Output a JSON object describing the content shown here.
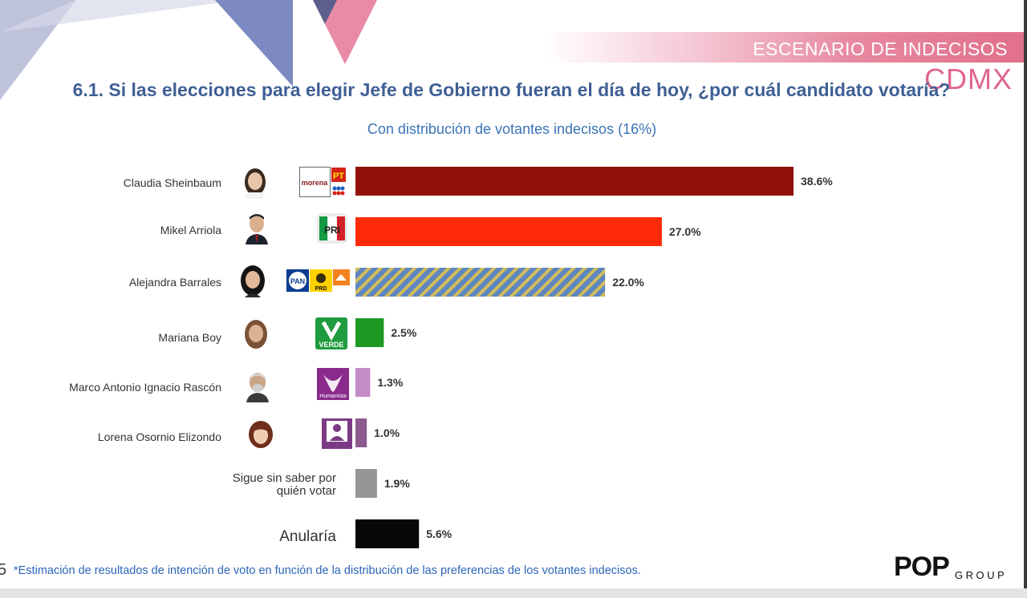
{
  "header": {
    "banner": "ESCENARIO DE INDECISOS",
    "region": "CDMX",
    "title": "6.1. Si las elecciones para elegir Jefe de Gobierno fueran el día de hoy, ¿por cuál candidato votaría?",
    "subtitle": "Con distribución de votantes indecisos (16%)"
  },
  "chart_data": {
    "type": "bar",
    "orientation": "horizontal",
    "title": "6.1. Si las elecciones para elegir Jefe de Gobierno fueran el día de hoy, ¿por cuál candidato votaría?",
    "subtitle": "Con distribución de votantes indecisos (16%)",
    "categories": [
      "Claudia Sheinbaum",
      "Mikel Arriola",
      "Alejandra Barrales",
      "Mariana Boy",
      "Marco Antonio Ignacio Rascón",
      "Lorena Osornio Elizondo",
      "Sigue sin saber por quién votar",
      "Anularía"
    ],
    "values": [
      38.6,
      27.0,
      22.0,
      2.5,
      1.3,
      1.0,
      1.9,
      5.6
    ],
    "labels": [
      "38.6%",
      "27.0%",
      "22.0%",
      "2.5%",
      "1.3%",
      "1.0%",
      "1.9%",
      "5.6%"
    ],
    "colors": [
      "#931108",
      "#ff2a0a",
      "striped-blue-yellow",
      "#1e9a24",
      "#c48cc8",
      "#8b5a8e",
      "#969696",
      "#080808"
    ],
    "xlim": [
      0,
      40
    ],
    "grid": false,
    "legend": "none"
  },
  "candidates": {
    "c0": "Claudia Sheinbaum",
    "c1": "Mikel Arriola",
    "c2": "Alejandra Barrales",
    "c3": "Mariana Boy",
    "c4": "Marco Antonio Ignacio Rascón",
    "c5": "Lorena Osornio Elizondo",
    "c6_line1": "Sigue sin saber por",
    "c6_line2": "quién votar",
    "c7": "Anularía"
  },
  "party_logos": {
    "morena": "morena",
    "pt": "PT",
    "pri": "PRI",
    "pan": "PAN",
    "prd": "PRD",
    "verde": "VERDE",
    "humanista": "Humanista"
  },
  "footer": {
    "page": "5",
    "note": "*Estimación de resultados de intención de voto en función de la distribución de las preferencias de los votantes indecisos.",
    "brand": "POP",
    "brand_sub": "GROUP"
  }
}
